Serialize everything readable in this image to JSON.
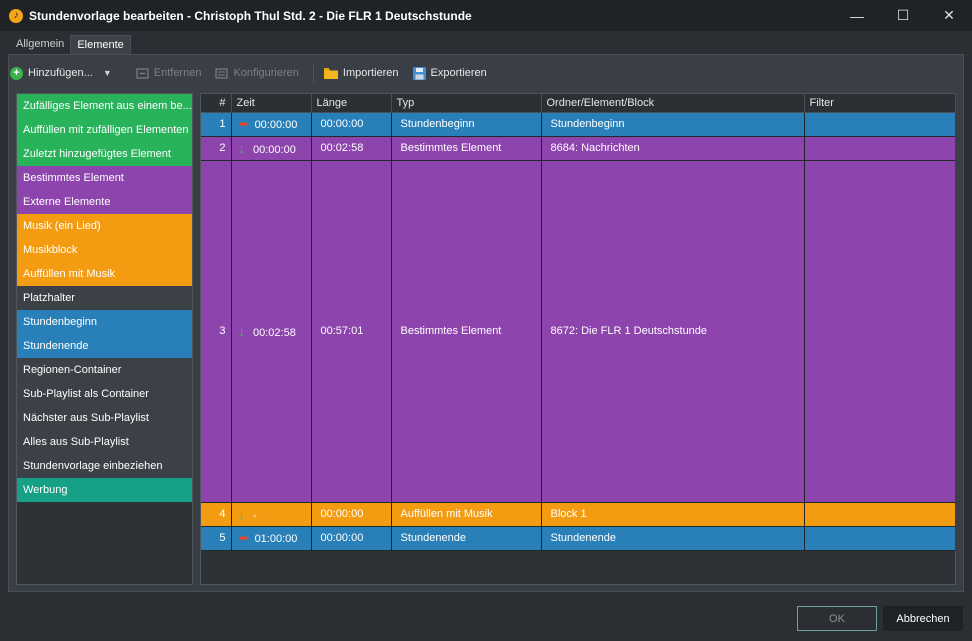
{
  "window": {
    "title": "Stundenvorlage bearbeiten - Christoph Thul Std. 2 - Die FLR 1 Deutschstunde",
    "minimize": "—",
    "maximize": "☐",
    "close": "✕"
  },
  "tabs": [
    {
      "label": "Allgemein",
      "active": false
    },
    {
      "label": "Elemente",
      "active": true
    }
  ],
  "toolbar": {
    "add_label": "Hinzufügen...",
    "remove_label": "Entfernen",
    "configure_label": "Konfigurieren",
    "import_label": "Importieren",
    "export_label": "Exportieren"
  },
  "colors": {
    "green": "#28b25a",
    "purple": "#8e44ad",
    "orange": "#f39c12",
    "gray": "#3b4146",
    "blue": "#2980b9",
    "teal": "#16a085"
  },
  "element_list": [
    {
      "label": "Zufälliges Element aus einem be...",
      "color": "#28b25a"
    },
    {
      "label": "Auffüllen mit zufälligen Elementen",
      "color": "#28b25a"
    },
    {
      "label": "Zuletzt hinzugefügtes Element",
      "color": "#28b25a"
    },
    {
      "label": "Bestimmtes Element",
      "color": "#8e44ad"
    },
    {
      "label": "Externe Elemente",
      "color": "#8e44ad"
    },
    {
      "label": "Musik (ein Lied)",
      "color": "#f39c12"
    },
    {
      "label": "Musikblock",
      "color": "#f39c12"
    },
    {
      "label": "Auffüllen mit Musik",
      "color": "#f39c12"
    },
    {
      "label": "Platzhalter",
      "color": "#3b4146"
    },
    {
      "label": "Stundenbeginn",
      "color": "#2980b9"
    },
    {
      "label": "Stundenende",
      "color": "#2980b9"
    },
    {
      "label": "Regionen-Container",
      "color": "#3b4146"
    },
    {
      "label": "Sub-Playlist als Container",
      "color": "#3b4146"
    },
    {
      "label": "Nächster aus Sub-Playlist",
      "color": "#3b4146"
    },
    {
      "label": "Alles aus Sub-Playlist",
      "color": "#3b4146"
    },
    {
      "label": "Stundenvorlage einbeziehen",
      "color": "#3b4146"
    },
    {
      "label": "Werbung",
      "color": "#16a085"
    }
  ],
  "table": {
    "headers": {
      "num": "#",
      "zeit": "Zeit",
      "laenge": "Länge",
      "typ": "Typ",
      "ordner": "Ordner/Element/Block",
      "filter": "Filter"
    },
    "rows": [
      {
        "num": "1",
        "arrow": "right",
        "zeit": "00:00:00",
        "laenge": "00:00:00",
        "typ": "Stundenbeginn",
        "ordner": "Stundenbeginn",
        "filter": "",
        "color": "#2980b9",
        "tall": false
      },
      {
        "num": "2",
        "arrow": "down",
        "zeit": "00:00:00",
        "laenge": "00:02:58",
        "typ": "Bestimmtes Element",
        "ordner": "8684: Nachrichten",
        "filter": "",
        "color": "#8e44ad",
        "tall": false
      },
      {
        "num": "3",
        "arrow": "down",
        "zeit": "00:02:58",
        "laenge": "00:57:01",
        "typ": "Bestimmtes Element",
        "ordner": "8672: Die FLR 1 Deutschstunde",
        "filter": "",
        "color": "#8e44ad",
        "tall": true
      },
      {
        "num": "4",
        "arrow": "down",
        "zeit": "-",
        "laenge": "00:00:00",
        "typ": "Auffüllen mit Musik",
        "ordner": "Block 1",
        "filter": "",
        "color": "#f39c12",
        "tall": false
      },
      {
        "num": "5",
        "arrow": "right",
        "zeit": "01:00:00",
        "laenge": "00:00:00",
        "typ": "Stundenende",
        "ordner": "Stundenende",
        "filter": "",
        "color": "#2980b9",
        "tall": false
      }
    ]
  },
  "buttons": {
    "ok_label": "OK",
    "cancel_label": "Abbrechen"
  }
}
